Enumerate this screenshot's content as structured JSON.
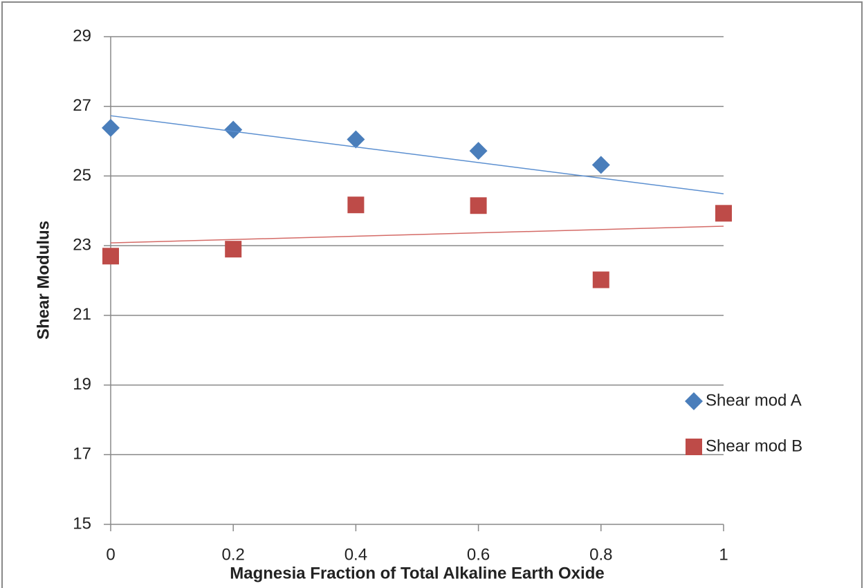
{
  "chart_data": {
    "type": "scatter",
    "xlabel": "Magnesia Fraction of Total Alkaline Earth Oxide",
    "ylabel": "Shear Modulus",
    "xlim": [
      0,
      1
    ],
    "xticks": [
      0,
      0.2,
      0.4,
      0.6,
      0.8,
      1
    ],
    "ylim": [
      15,
      29
    ],
    "yticks": [
      15,
      17,
      19,
      21,
      23,
      25,
      27,
      29
    ],
    "grid": true,
    "legend": "right",
    "series": [
      {
        "name": "Shear mod A",
        "color": "#4a7ebb",
        "marker": "diamond",
        "x": [
          0,
          0.2,
          0.4,
          0.6,
          0.8
        ],
        "values": [
          26.38,
          26.33,
          26.05,
          25.72,
          25.32
        ],
        "trendline": {
          "color": "#5b8fd0",
          "x": [
            0,
            1
          ],
          "values": [
            26.73,
            24.49
          ]
        }
      },
      {
        "name": "Shear mod B",
        "color": "#be4b48",
        "marker": "square",
        "x": [
          0,
          0.2,
          0.4,
          0.6,
          0.8,
          1
        ],
        "values": [
          22.7,
          22.9,
          24.17,
          24.15,
          22.02,
          23.93
        ],
        "trendline": {
          "color": "#d46a66",
          "x": [
            0,
            1
          ],
          "values": [
            23.08,
            23.56
          ]
        }
      }
    ]
  }
}
